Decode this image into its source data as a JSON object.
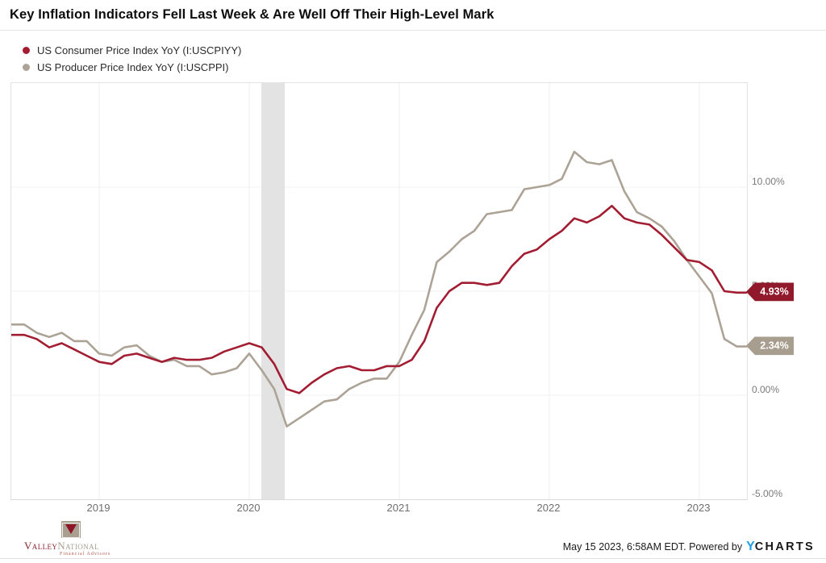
{
  "header": {
    "title": "Key Inflation Indicators Fell Last Week & Are Well Off Their High-Level Mark"
  },
  "chart_data": {
    "type": "line",
    "x_unit": "month",
    "x_start": "2018-06",
    "x_end": "2023-04",
    "x_tick_labels": [
      "2019",
      "2020",
      "2021",
      "2022",
      "2023"
    ],
    "y_ticks": [
      10,
      5,
      0,
      -5
    ],
    "y_tick_labels": [
      "10.00%",
      "5.00%",
      "0.00%",
      "-5.00%"
    ],
    "ylim": [
      -5,
      15
    ],
    "grid": true,
    "legend_position": "top-left",
    "recession_band": {
      "start": "2020-02",
      "end": "2020-04",
      "color": "#e3e3e3"
    },
    "series": [
      {
        "name": "US Consumer Price Index YoY (I:USCPIYY)",
        "line_color": "#a31d32",
        "badge_color": "#901a2b",
        "end_label": "4.93%",
        "values": [
          2.9,
          2.9,
          2.7,
          2.3,
          2.5,
          2.2,
          1.9,
          1.6,
          1.5,
          1.9,
          2.0,
          1.8,
          1.6,
          1.8,
          1.7,
          1.7,
          1.8,
          2.1,
          2.3,
          2.5,
          2.3,
          1.5,
          0.3,
          0.1,
          0.6,
          1.0,
          1.3,
          1.4,
          1.2,
          1.2,
          1.4,
          1.4,
          1.7,
          2.6,
          4.2,
          5.0,
          5.4,
          5.4,
          5.3,
          5.4,
          6.2,
          6.8,
          7.0,
          7.5,
          7.9,
          8.5,
          8.3,
          8.6,
          9.1,
          8.5,
          8.3,
          8.2,
          7.7,
          7.1,
          6.5,
          6.4,
          6.0,
          5.0,
          4.93
        ]
      },
      {
        "name": "US Producer Price Index YoY (I:USCPPI)",
        "line_color": "#aca396",
        "badge_color": "#a89e8f",
        "end_label": "2.34%",
        "values": [
          3.4,
          3.4,
          3.0,
          2.8,
          3.0,
          2.6,
          2.6,
          2.0,
          1.9,
          2.3,
          2.4,
          1.9,
          1.6,
          1.7,
          1.4,
          1.4,
          1.0,
          1.1,
          1.3,
          2.0,
          1.2,
          0.3,
          -1.5,
          -1.1,
          -0.7,
          -0.3,
          -0.2,
          0.3,
          0.6,
          0.8,
          0.8,
          1.6,
          2.9,
          4.1,
          6.4,
          6.9,
          7.5,
          7.9,
          8.7,
          8.8,
          8.9,
          9.9,
          10.0,
          10.1,
          10.4,
          11.7,
          11.2,
          11.1,
          11.3,
          9.8,
          8.8,
          8.5,
          8.1,
          7.4,
          6.5,
          5.7,
          4.9,
          2.7,
          2.34
        ]
      }
    ]
  },
  "footer": {
    "logo": {
      "name_a": "Valley",
      "name_b": "National",
      "subtitle": "Financial Advisors"
    },
    "timestamp": "May 15 2023, 6:58AM EDT. Powered by",
    "ycharts": {
      "y": "Y",
      "rest": "CHARTS"
    }
  }
}
